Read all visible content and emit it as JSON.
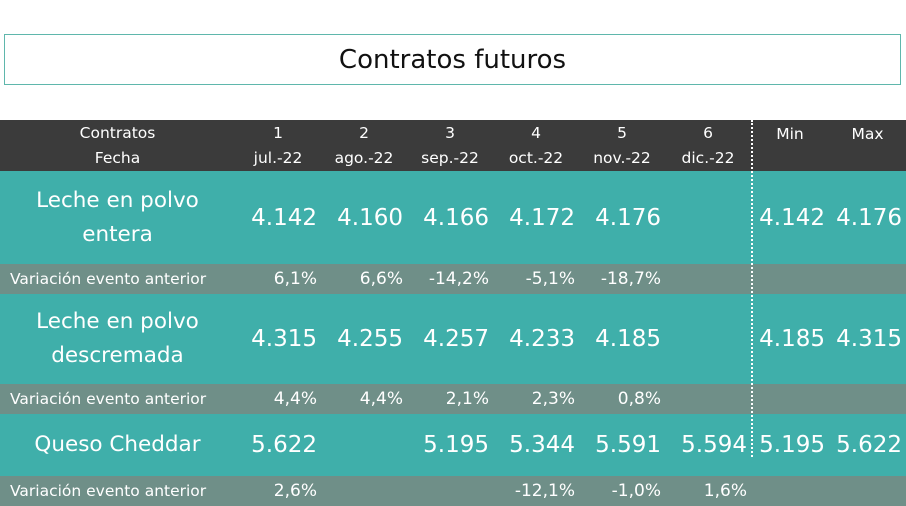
{
  "title": "Contratos futuros",
  "header": {
    "label_line1": "Contratos",
    "label_line2": "Fecha",
    "columns": [
      {
        "num": "1",
        "date": "jul.-22"
      },
      {
        "num": "2",
        "date": "ago.-22"
      },
      {
        "num": "3",
        "date": "sep.-22"
      },
      {
        "num": "4",
        "date": "oct.-22"
      },
      {
        "num": "5",
        "date": "nov.-22"
      },
      {
        "num": "6",
        "date": "dic.-22"
      }
    ],
    "min_label": "Min",
    "max_label": "Max"
  },
  "rows": [
    {
      "product_line1": "Leche en polvo",
      "product_line2": "entera",
      "values": [
        "4.142",
        "4.160",
        "4.166",
        "4.172",
        "4.176",
        ""
      ],
      "min": "4.142",
      "max": "4.176",
      "variation_label": "Variación evento anterior",
      "variations": [
        "6,1%",
        "6,6%",
        "-14,2%",
        "-5,1%",
        "-18,7%",
        ""
      ]
    },
    {
      "product_line1": "Leche en polvo",
      "product_line2": "descremada",
      "values": [
        "4.315",
        "4.255",
        "4.257",
        "4.233",
        "4.185",
        ""
      ],
      "min": "4.185",
      "max": "4.315",
      "variation_label": "Variación evento anterior",
      "variations": [
        "4,4%",
        "4,4%",
        "2,1%",
        "2,3%",
        "0,8%",
        ""
      ]
    },
    {
      "product_line1": "Queso Cheddar",
      "product_line2": "",
      "values": [
        "5.622",
        "",
        "5.195",
        "5.344",
        "5.591",
        "5.594"
      ],
      "min": "5.195",
      "max": "5.622",
      "variation_label": "Variación evento anterior",
      "variations": [
        "2,6%",
        "",
        "",
        "-12,1%",
        "-1,0%",
        "1,6%"
      ]
    }
  ],
  "colors": {
    "header_bg": "#3b3b3b",
    "product_row_bg": "#3fafaa",
    "variation_row_bg": "#6f8f88",
    "title_border": "#5fb7ac"
  }
}
